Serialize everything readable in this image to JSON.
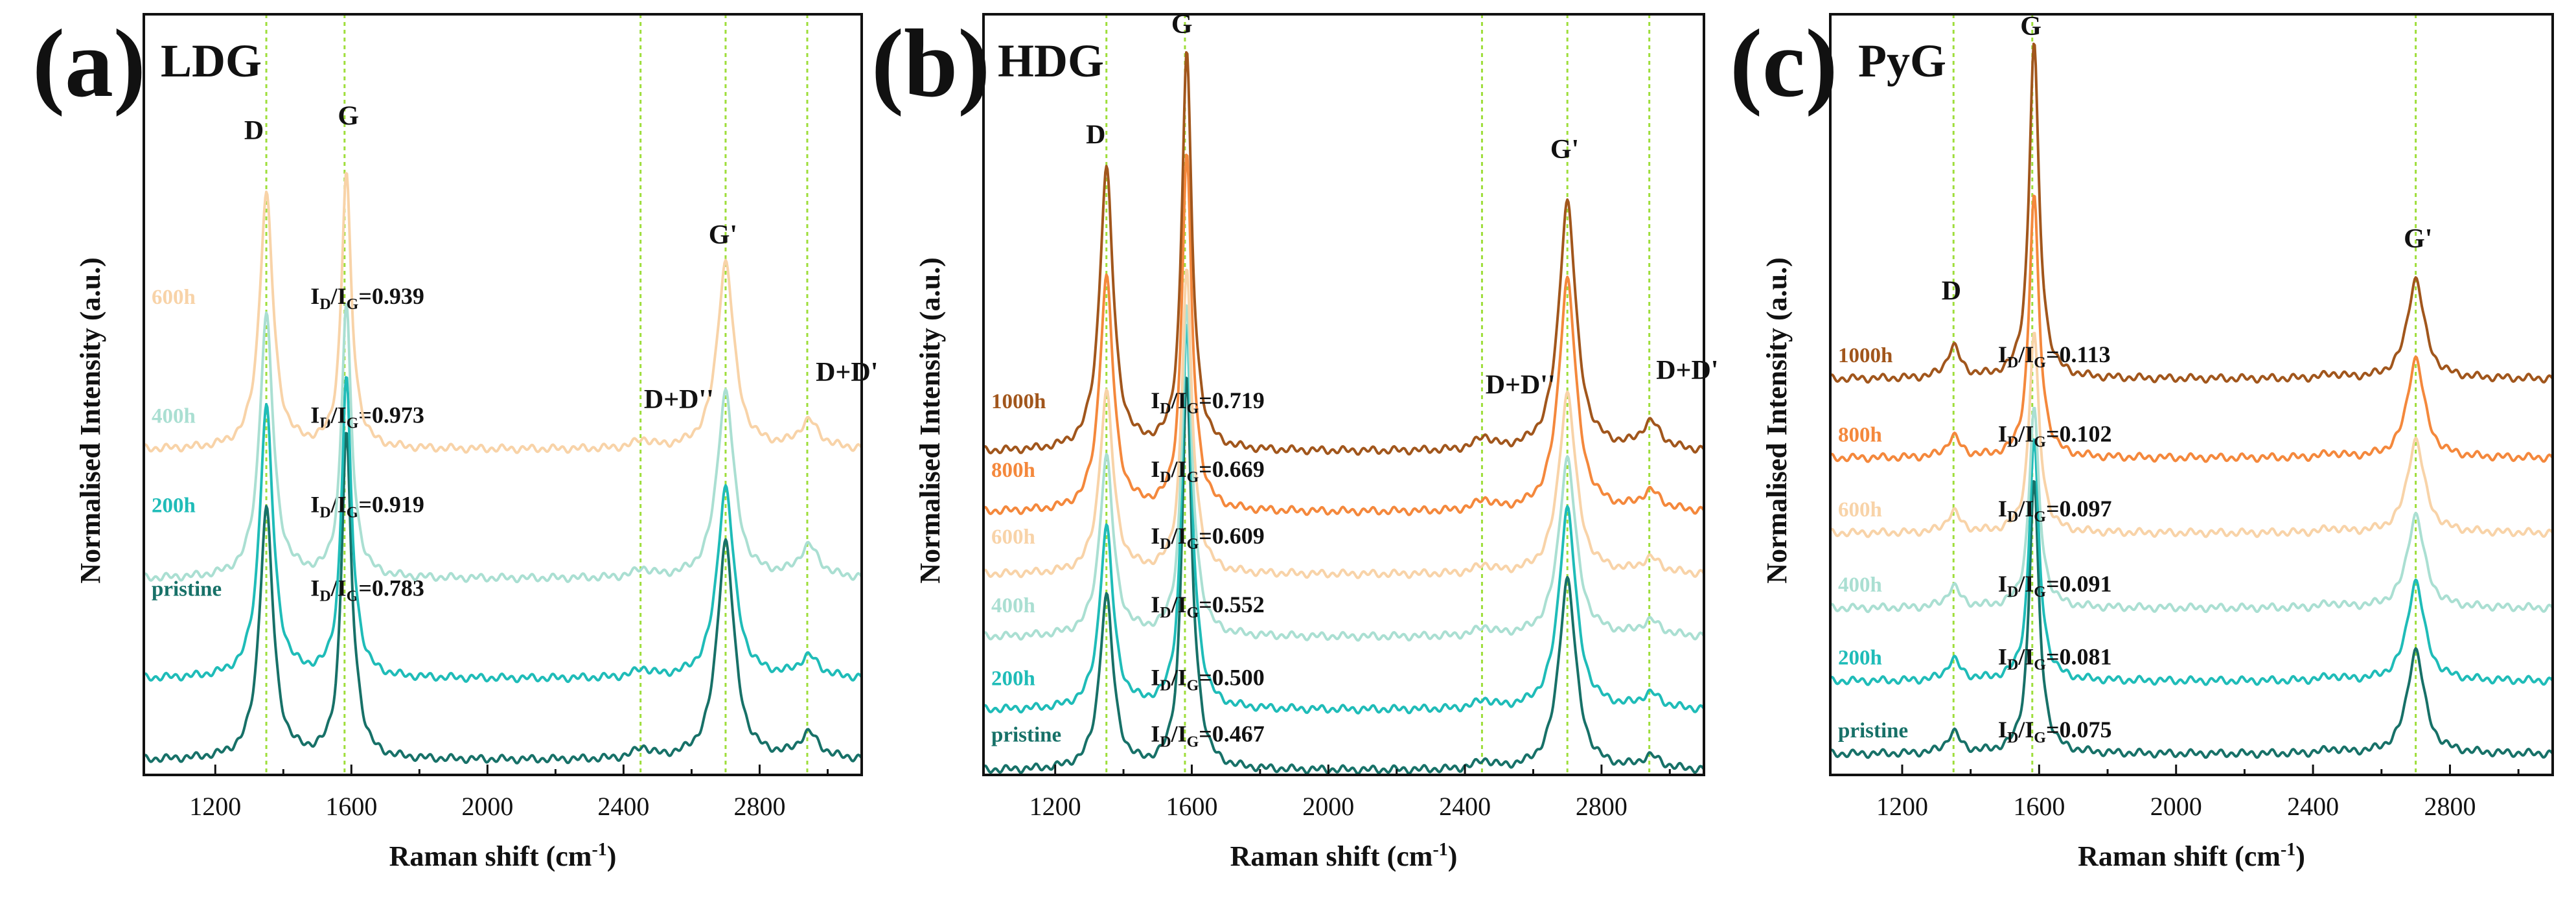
{
  "chart_data": [
    {
      "type": "line",
      "panel": "(a)",
      "title": "LDG",
      "xlabel": "Raman shift (cm-1)",
      "ylabel": "Normalised Intensity (a.u.)",
      "xlim": [
        990,
        3100
      ],
      "xticks": [
        1200,
        1600,
        2000,
        2400,
        2800
      ],
      "ylim": [
        0,
        3.65
      ],
      "yticks": false,
      "ratio_label": "ID/IG",
      "reference_lines": [
        1350,
        1580,
        2450,
        2700,
        2940
      ],
      "peak_labels": [
        {
          "text": "D",
          "x": 1285,
          "y": 3.05
        },
        {
          "text": "G",
          "x": 1560,
          "y": 3.12
        },
        {
          "text": "G'",
          "x": 2650,
          "y": 2.55
        },
        {
          "text": "D+D''",
          "x": 2460,
          "y": 1.76
        },
        {
          "text": "D+D'",
          "x": 2965,
          "y": 1.89
        }
      ],
      "series": [
        {
          "name": "pristine",
          "color": "#177168",
          "offset": 0.07,
          "label_y": 0.8,
          "ratio": 0.783,
          "ratio_text": "0.783",
          "peaks": {
            "D": 1.2,
            "G": 1.52,
            "Gp": 1.05,
            "DDpp": 0.05,
            "DDp": 0.12,
            "bump": 0.12
          }
        },
        {
          "name": "200h",
          "color": "#1fbcb8",
          "offset": 0.46,
          "label_y": 1.2,
          "ratio": 0.919,
          "ratio_text": "0.919",
          "peaks": {
            "D": 1.3,
            "G": 1.41,
            "Gp": 0.92,
            "DDpp": 0.04,
            "DDp": 0.1,
            "bump": 0.08
          }
        },
        {
          "name": "400h",
          "color": "#aadfd2",
          "offset": 0.94,
          "label_y": 1.63,
          "ratio": 0.973,
          "ratio_text": "0.973",
          "peaks": {
            "D": 1.26,
            "G": 1.29,
            "Gp": 0.9,
            "DDpp": 0.04,
            "DDp": 0.15,
            "bump": 0.05
          }
        },
        {
          "name": "600h",
          "color": "#f8d3a8",
          "offset": 1.56,
          "label_y": 2.2,
          "ratio": 0.939,
          "ratio_text": "0.939",
          "peaks": {
            "D": 1.22,
            "G": 1.3,
            "Gp": 0.9,
            "DDpp": 0.04,
            "DDp": 0.13,
            "bump": 0.05
          }
        }
      ]
    },
    {
      "type": "line",
      "panel": "(b)",
      "title": "HDG",
      "xlabel": "Raman shift (cm-1)",
      "ylabel": "Normalised Intensity (a.u.)",
      "xlim": [
        990,
        3100
      ],
      "xticks": [
        1200,
        1600,
        2000,
        2400,
        2800
      ],
      "ylim": [
        0,
        3.65
      ],
      "yticks": false,
      "ratio_label": "ID/IG",
      "reference_lines": [
        1350,
        1580,
        2450,
        2700,
        2940
      ],
      "peak_labels": [
        {
          "text": "D",
          "x": 1290,
          "y": 3.03
        },
        {
          "text": "G",
          "x": 1540,
          "y": 3.56
        },
        {
          "text": "G'",
          "x": 2650,
          "y": 2.96
        },
        {
          "text": "D+D''",
          "x": 2460,
          "y": 1.83
        },
        {
          "text": "D+D'",
          "x": 2960,
          "y": 1.9
        }
      ],
      "series": [
        {
          "name": "pristine",
          "color": "#177168",
          "offset": 0.02,
          "label_y": 0.1,
          "ratio": 0.467,
          "ratio_text": "0.467",
          "peaks": {
            "D": 0.83,
            "G": 1.84,
            "Gp": 0.92,
            "DDpp": 0.04,
            "DDp": 0.06,
            "bump": 0.12
          }
        },
        {
          "name": "200h",
          "color": "#1fbcb8",
          "offset": 0.31,
          "label_y": 0.37,
          "ratio": 0.5,
          "ratio_text": "0.500",
          "peaks": {
            "D": 0.87,
            "G": 1.81,
            "Gp": 0.97,
            "DDpp": 0.04,
            "DDp": 0.07,
            "bump": 0.1
          }
        },
        {
          "name": "400h",
          "color": "#aadfd2",
          "offset": 0.66,
          "label_y": 0.72,
          "ratio": 0.552,
          "ratio_text": "0.552",
          "peaks": {
            "D": 0.86,
            "G": 1.56,
            "Gp": 0.86,
            "DDpp": 0.04,
            "DDp": 0.07,
            "bump": 0.08
          }
        },
        {
          "name": "600h",
          "color": "#f8d3a8",
          "offset": 0.96,
          "label_y": 1.05,
          "ratio": 0.609,
          "ratio_text": "0.609",
          "peaks": {
            "D": 0.87,
            "G": 1.43,
            "Gp": 0.87,
            "DDpp": 0.04,
            "DDp": 0.07,
            "bump": 0.08
          }
        },
        {
          "name": "800h",
          "color": "#f4883c",
          "offset": 1.26,
          "label_y": 1.37,
          "ratio": 0.669,
          "ratio_text": "0.669",
          "peaks": {
            "D": 1.12,
            "G": 1.68,
            "Gp": 1.12,
            "DDpp": 0.05,
            "DDp": 0.09,
            "bump": 0.08
          }
        },
        {
          "name": "1000h",
          "color": "#a1561c",
          "offset": 1.55,
          "label_y": 1.7,
          "ratio": 0.719,
          "ratio_text": "0.719",
          "peaks": {
            "D": 1.35,
            "G": 1.88,
            "Gp": 1.2,
            "DDpp": 0.06,
            "DDp": 0.13,
            "bump": 0.08
          }
        }
      ]
    },
    {
      "type": "line",
      "panel": "(c)",
      "title": "PyG",
      "xlabel": "Raman shift (cm-1)",
      "ylabel": "Normalised Intensity (a.u.)",
      "xlim": [
        990,
        3100
      ],
      "xticks": [
        1200,
        1600,
        2000,
        2400,
        2800
      ],
      "ylim": [
        0,
        3.65
      ],
      "yticks": false,
      "ratio_label": "ID/IG",
      "reference_lines": [
        1350,
        1580,
        2700
      ],
      "peak_labels": [
        {
          "text": "D",
          "x": 1315,
          "y": 2.28
        },
        {
          "text": "G",
          "x": 1545,
          "y": 3.55
        },
        {
          "text": "G'",
          "x": 2665,
          "y": 2.53
        }
      ],
      "series": [
        {
          "name": "pristine",
          "color": "#177168",
          "offset": 0.1,
          "label_y": 0.12,
          "ratio": 0.075,
          "ratio_text": "0.075",
          "peaks": {
            "D": 0.1,
            "G": 1.3,
            "Gp": 0.5,
            "DDpp": 0.02,
            "DDp": 0.0,
            "bump": 0.03
          }
        },
        {
          "name": "200h",
          "color": "#1fbcb8",
          "offset": 0.45,
          "label_y": 0.47,
          "ratio": 0.081,
          "ratio_text": "0.081",
          "peaks": {
            "D": 0.1,
            "G": 1.15,
            "Gp": 0.48,
            "DDpp": 0.02,
            "DDp": 0.0,
            "bump": 0.03
          }
        },
        {
          "name": "400h",
          "color": "#aadfd2",
          "offset": 0.8,
          "label_y": 0.82,
          "ratio": 0.091,
          "ratio_text": "0.091",
          "peaks": {
            "D": 0.1,
            "G": 0.95,
            "Gp": 0.45,
            "DDpp": 0.02,
            "DDp": 0.0,
            "bump": 0.03
          }
        },
        {
          "name": "600h",
          "color": "#f8d3a8",
          "offset": 1.16,
          "label_y": 1.18,
          "ratio": 0.097,
          "ratio_text": "0.097",
          "peaks": {
            "D": 0.1,
            "G": 0.95,
            "Gp": 0.45,
            "DDpp": 0.02,
            "DDp": 0.0,
            "bump": 0.03
          }
        },
        {
          "name": "800h",
          "color": "#f4883c",
          "offset": 1.52,
          "label_y": 1.54,
          "ratio": 0.102,
          "ratio_text": "0.102",
          "peaks": {
            "D": 0.1,
            "G": 1.25,
            "Gp": 0.48,
            "DDpp": 0.02,
            "DDp": 0.0,
            "bump": 0.03
          }
        },
        {
          "name": "1000h",
          "color": "#a1561c",
          "offset": 1.9,
          "label_y": 1.92,
          "ratio": 0.113,
          "ratio_text": "0.113",
          "peaks": {
            "D": 0.15,
            "G": 1.6,
            "Gp": 0.48,
            "DDpp": 0.02,
            "DDp": 0.0,
            "bump": 0.03
          }
        }
      ]
    }
  ]
}
